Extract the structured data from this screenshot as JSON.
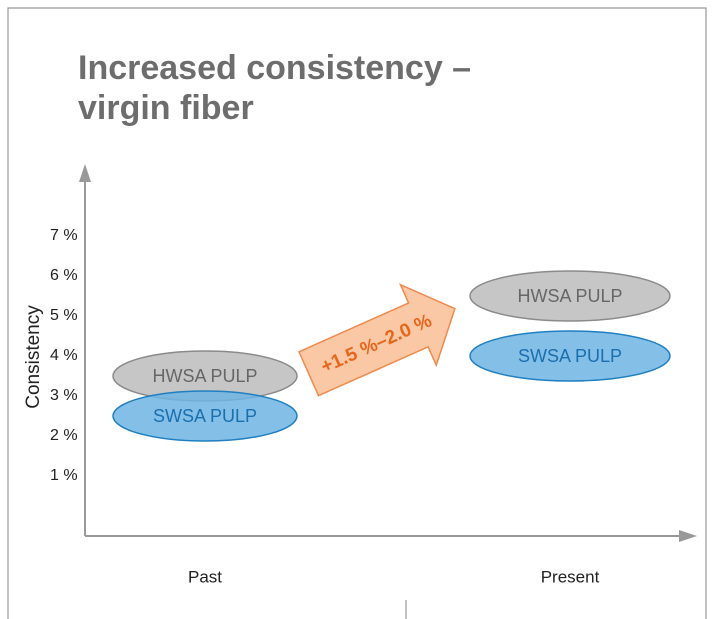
{
  "chart_data": {
    "type": "range",
    "title": [
      "Increased consistency –",
      "virgin fiber"
    ],
    "ylabel": "Consistency",
    "categories": [
      "Past",
      "Present"
    ],
    "series": [
      {
        "name": "HWSA PULP",
        "color": "#c6c6c6",
        "values": [
          3.5,
          5.5
        ]
      },
      {
        "name": "SWSA PULP",
        "color": "#6db4e2",
        "values": [
          2.5,
          4
        ]
      }
    ],
    "annotation": "+1.5 %–2.0 %",
    "ylim": [
      -0.5,
      8.8
    ],
    "yticks": [
      {
        "value": 1,
        "label": "1 %"
      },
      {
        "value": 2,
        "label": "2 %"
      },
      {
        "value": 3,
        "label": "3 %"
      },
      {
        "value": 4,
        "label": "4 %"
      },
      {
        "value": 5,
        "label": "5 %"
      },
      {
        "value": 6,
        "label": "6 %"
      },
      {
        "value": 7,
        "label": "7 %"
      }
    ]
  }
}
